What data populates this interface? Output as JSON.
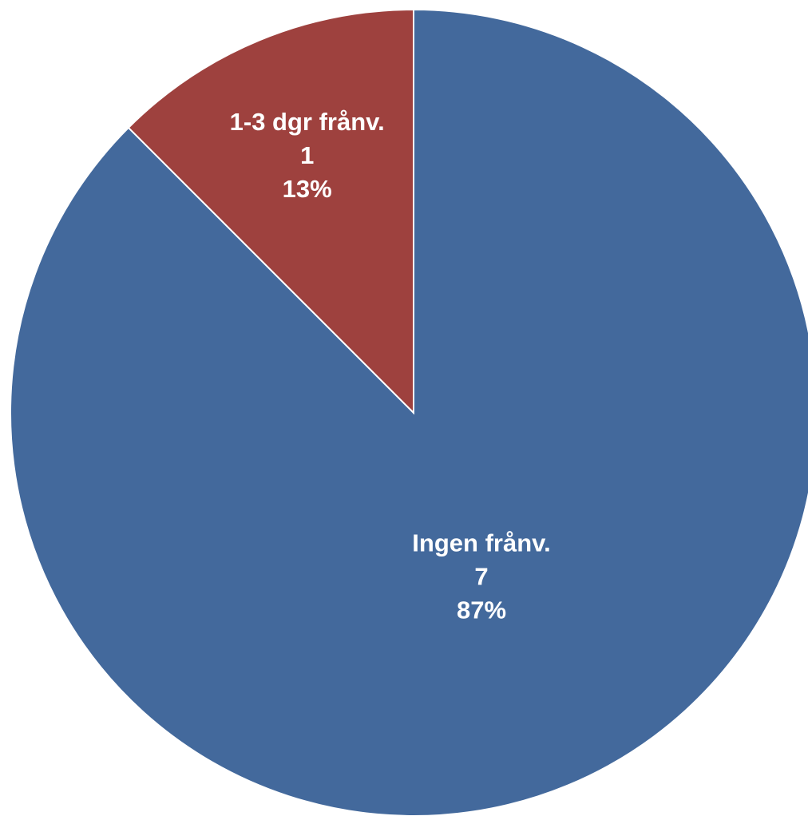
{
  "chart_data": {
    "type": "pie",
    "title": "",
    "start_angle": "top (12 o'clock), clockwise",
    "slices": [
      {
        "name": "Ingen frånv.",
        "value": 7,
        "percent_label": "87%",
        "value_label": "7",
        "color": "#43699C"
      },
      {
        "name": "1-3 dgr frånv.",
        "value": 1,
        "percent_label": "13%",
        "value_label": "1",
        "color": "#9E413E"
      }
    ],
    "data_labels": "category, value, percent (inside slices)",
    "legend": "none",
    "slice_border_color": "#ffffff"
  }
}
